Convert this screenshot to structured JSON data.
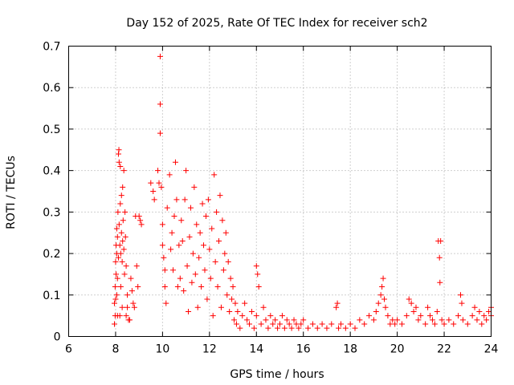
{
  "chart_data": {
    "type": "scatter",
    "title": "Day 152 of 2025, Rate Of TEC Index for receiver sch2",
    "xlabel": "GPS time / hours",
    "ylabel": "ROTI / TECUs",
    "xlim": [
      6,
      24
    ],
    "ylim": [
      0,
      0.7
    ],
    "xticks": [
      6,
      8,
      10,
      12,
      14,
      16,
      18,
      20,
      22,
      24
    ],
    "yticks": [
      0,
      0.1,
      0.2,
      0.3,
      0.4,
      0.5,
      0.6,
      0.7
    ],
    "xtick_labels": [
      "6",
      "8",
      "10",
      "12",
      "14",
      "16",
      "18",
      "20",
      "22",
      "24"
    ],
    "ytick_labels": [
      "0",
      "0.1",
      "0.2",
      "0.3",
      "0.4",
      "0.5",
      "0.6",
      "0.7"
    ],
    "grid": true,
    "marker": "+",
    "color": "#ff0000",
    "series": [
      {
        "name": "ROTI",
        "points": [
          [
            7.95,
            0.03
          ],
          [
            7.95,
            0.08
          ],
          [
            7.98,
            0.05
          ],
          [
            7.98,
            0.12
          ],
          [
            8.0,
            0.09
          ],
          [
            8.0,
            0.18
          ],
          [
            8.02,
            0.15
          ],
          [
            8.02,
            0.22
          ],
          [
            8.05,
            0.1
          ],
          [
            8.05,
            0.2
          ],
          [
            8.05,
            0.26
          ],
          [
            8.08,
            0.05
          ],
          [
            8.08,
            0.14
          ],
          [
            8.08,
            0.24
          ],
          [
            8.1,
            0.3
          ],
          [
            8.12,
            0.19
          ],
          [
            8.12,
            0.44
          ],
          [
            8.14,
            0.45
          ],
          [
            8.15,
            0.42
          ],
          [
            8.15,
            0.27
          ],
          [
            8.18,
            0.22
          ],
          [
            8.18,
            0.05
          ],
          [
            8.2,
            0.41
          ],
          [
            8.2,
            0.32
          ],
          [
            8.22,
            0.2
          ],
          [
            8.22,
            0.12
          ],
          [
            8.25,
            0.25
          ],
          [
            8.25,
            0.34
          ],
          [
            8.28,
            0.18
          ],
          [
            8.28,
            0.07
          ],
          [
            8.3,
            0.23
          ],
          [
            8.3,
            0.36
          ],
          [
            8.32,
            0.28
          ],
          [
            8.35,
            0.4
          ],
          [
            8.35,
            0.21
          ],
          [
            8.38,
            0.15
          ],
          [
            8.4,
            0.3
          ],
          [
            8.42,
            0.24
          ],
          [
            8.45,
            0.05
          ],
          [
            8.45,
            0.17
          ],
          [
            8.5,
            0.1
          ],
          [
            8.5,
            0.07
          ],
          [
            8.55,
            0.04
          ],
          [
            8.6,
            0.04
          ],
          [
            8.65,
            0.14
          ],
          [
            8.7,
            0.11
          ],
          [
            8.75,
            0.08
          ],
          [
            8.8,
            0.07
          ],
          [
            8.85,
            0.29
          ],
          [
            8.9,
            0.17
          ],
          [
            8.95,
            0.12
          ],
          [
            9.0,
            0.29
          ],
          [
            9.05,
            0.28
          ],
          [
            9.1,
            0.27
          ],
          [
            9.5,
            0.37
          ],
          [
            9.6,
            0.35
          ],
          [
            9.65,
            0.33
          ],
          [
            9.8,
            0.4
          ],
          [
            9.85,
            0.37
          ],
          [
            9.9,
            0.49
          ],
          [
            9.9,
            0.56
          ],
          [
            9.9,
            0.675
          ],
          [
            9.95,
            0.36
          ],
          [
            10.0,
            0.27
          ],
          [
            10.0,
            0.22
          ],
          [
            10.05,
            0.19
          ],
          [
            10.1,
            0.12
          ],
          [
            10.1,
            0.16
          ],
          [
            10.15,
            0.08
          ],
          [
            10.2,
            0.31
          ],
          [
            10.3,
            0.39
          ],
          [
            10.35,
            0.21
          ],
          [
            10.4,
            0.25
          ],
          [
            10.45,
            0.16
          ],
          [
            10.5,
            0.29
          ],
          [
            10.55,
            0.42
          ],
          [
            10.6,
            0.33
          ],
          [
            10.65,
            0.12
          ],
          [
            10.7,
            0.22
          ],
          [
            10.75,
            0.14
          ],
          [
            10.8,
            0.28
          ],
          [
            10.85,
            0.23
          ],
          [
            10.9,
            0.11
          ],
          [
            10.95,
            0.33
          ],
          [
            11.0,
            0.4
          ],
          [
            11.05,
            0.17
          ],
          [
            11.1,
            0.06
          ],
          [
            11.15,
            0.24
          ],
          [
            11.2,
            0.31
          ],
          [
            11.25,
            0.13
          ],
          [
            11.3,
            0.2
          ],
          [
            11.35,
            0.36
          ],
          [
            11.4,
            0.15
          ],
          [
            11.45,
            0.27
          ],
          [
            11.5,
            0.07
          ],
          [
            11.55,
            0.19
          ],
          [
            11.6,
            0.25
          ],
          [
            11.65,
            0.12
          ],
          [
            11.7,
            0.32
          ],
          [
            11.75,
            0.22
          ],
          [
            11.8,
            0.16
          ],
          [
            11.85,
            0.29
          ],
          [
            11.9,
            0.09
          ],
          [
            11.95,
            0.33
          ],
          [
            12.0,
            0.21
          ],
          [
            12.05,
            0.14
          ],
          [
            12.1,
            0.26
          ],
          [
            12.15,
            0.05
          ],
          [
            12.2,
            0.39
          ],
          [
            12.25,
            0.18
          ],
          [
            12.3,
            0.3
          ],
          [
            12.35,
            0.12
          ],
          [
            12.4,
            0.23
          ],
          [
            12.45,
            0.34
          ],
          [
            12.5,
            0.07
          ],
          [
            12.55,
            0.28
          ],
          [
            12.6,
            0.16
          ],
          [
            12.65,
            0.2
          ],
          [
            12.7,
            0.25
          ],
          [
            12.75,
            0.1
          ],
          [
            12.8,
            0.18
          ],
          [
            12.85,
            0.06
          ],
          [
            12.9,
            0.14
          ],
          [
            12.95,
            0.09
          ],
          [
            13.0,
            0.12
          ],
          [
            13.05,
            0.04
          ],
          [
            13.1,
            0.08
          ],
          [
            13.15,
            0.03
          ],
          [
            13.2,
            0.06
          ],
          [
            13.3,
            0.02
          ],
          [
            13.4,
            0.05
          ],
          [
            13.5,
            0.08
          ],
          [
            13.6,
            0.04
          ],
          [
            13.7,
            0.03
          ],
          [
            13.8,
            0.06
          ],
          [
            13.9,
            0.02
          ],
          [
            14.0,
            0.05
          ],
          [
            14.0,
            0.17
          ],
          [
            14.05,
            0.15
          ],
          [
            14.1,
            0.12
          ],
          [
            14.2,
            0.03
          ],
          [
            14.3,
            0.07
          ],
          [
            14.4,
            0.04
          ],
          [
            14.5,
            0.02
          ],
          [
            14.6,
            0.05
          ],
          [
            14.7,
            0.03
          ],
          [
            14.8,
            0.04
          ],
          [
            14.9,
            0.02
          ],
          [
            15.0,
            0.03
          ],
          [
            15.1,
            0.05
          ],
          [
            15.2,
            0.02
          ],
          [
            15.3,
            0.04
          ],
          [
            15.4,
            0.03
          ],
          [
            15.5,
            0.02
          ],
          [
            15.6,
            0.04
          ],
          [
            15.7,
            0.03
          ],
          [
            15.8,
            0.02
          ],
          [
            15.9,
            0.03
          ],
          [
            16.0,
            0.04
          ],
          [
            16.2,
            0.02
          ],
          [
            16.4,
            0.03
          ],
          [
            16.6,
            0.02
          ],
          [
            16.8,
            0.03
          ],
          [
            17.0,
            0.02
          ],
          [
            17.2,
            0.03
          ],
          [
            17.4,
            0.07
          ],
          [
            17.45,
            0.08
          ],
          [
            17.5,
            0.02
          ],
          [
            17.6,
            0.03
          ],
          [
            17.8,
            0.02
          ],
          [
            18.0,
            0.03
          ],
          [
            18.2,
            0.02
          ],
          [
            18.4,
            0.04
          ],
          [
            18.6,
            0.03
          ],
          [
            18.8,
            0.05
          ],
          [
            19.0,
            0.04
          ],
          [
            19.1,
            0.06
          ],
          [
            19.2,
            0.08
          ],
          [
            19.3,
            0.1
          ],
          [
            19.35,
            0.12
          ],
          [
            19.4,
            0.14
          ],
          [
            19.45,
            0.09
          ],
          [
            19.5,
            0.07
          ],
          [
            19.6,
            0.05
          ],
          [
            19.7,
            0.03
          ],
          [
            19.8,
            0.04
          ],
          [
            19.9,
            0.03
          ],
          [
            20.0,
            0.04
          ],
          [
            20.2,
            0.03
          ],
          [
            20.4,
            0.05
          ],
          [
            20.5,
            0.09
          ],
          [
            20.6,
            0.08
          ],
          [
            20.7,
            0.06
          ],
          [
            20.8,
            0.07
          ],
          [
            20.9,
            0.04
          ],
          [
            21.0,
            0.05
          ],
          [
            21.2,
            0.03
          ],
          [
            21.3,
            0.07
          ],
          [
            21.4,
            0.05
          ],
          [
            21.5,
            0.04
          ],
          [
            21.6,
            0.03
          ],
          [
            21.7,
            0.06
          ],
          [
            21.75,
            0.23
          ],
          [
            21.8,
            0.19
          ],
          [
            21.82,
            0.13
          ],
          [
            21.85,
            0.23
          ],
          [
            21.9,
            0.04
          ],
          [
            22.0,
            0.03
          ],
          [
            22.2,
            0.04
          ],
          [
            22.4,
            0.03
          ],
          [
            22.6,
            0.05
          ],
          [
            22.7,
            0.1
          ],
          [
            22.75,
            0.08
          ],
          [
            22.8,
            0.04
          ],
          [
            23.0,
            0.03
          ],
          [
            23.2,
            0.05
          ],
          [
            23.3,
            0.07
          ],
          [
            23.4,
            0.04
          ],
          [
            23.5,
            0.06
          ],
          [
            23.6,
            0.03
          ],
          [
            23.7,
            0.05
          ],
          [
            23.8,
            0.04
          ],
          [
            23.9,
            0.06
          ],
          [
            24.0,
            0.05
          ],
          [
            24.0,
            0.07
          ]
        ]
      }
    ]
  }
}
